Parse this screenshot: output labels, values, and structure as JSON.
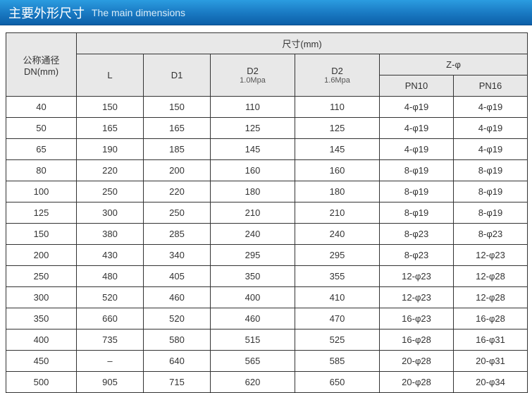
{
  "header": {
    "title_cn": "主要外形尺寸",
    "title_en": "The main dimensions"
  },
  "table": {
    "header": {
      "dn_line1": "公称通径",
      "dn_line2": "DN(mm)",
      "size_label": "尺寸(mm)",
      "L": "L",
      "D1": "D1",
      "D2a_main": "D2",
      "D2a_sub": "1.0Mpa",
      "D2b_main": "D2",
      "D2b_sub": "1.6Mpa",
      "Z_label": "Z-φ",
      "PN10": "PN10",
      "PN16": "PN16"
    },
    "rows": [
      {
        "dn": "40",
        "L": "150",
        "D1": "150",
        "D2a": "110",
        "D2b": "110",
        "Z1": "4-φ19",
        "Z2": "4-φ19"
      },
      {
        "dn": "50",
        "L": "165",
        "D1": "165",
        "D2a": "125",
        "D2b": "125",
        "Z1": "4-φ19",
        "Z2": "4-φ19"
      },
      {
        "dn": "65",
        "L": "190",
        "D1": "185",
        "D2a": "145",
        "D2b": "145",
        "Z1": "4-φ19",
        "Z2": "4-φ19"
      },
      {
        "dn": "80",
        "L": "220",
        "D1": "200",
        "D2a": "160",
        "D2b": "160",
        "Z1": "8-φ19",
        "Z2": "8-φ19"
      },
      {
        "dn": "100",
        "L": "250",
        "D1": "220",
        "D2a": "180",
        "D2b": "180",
        "Z1": "8-φ19",
        "Z2": "8-φ19"
      },
      {
        "dn": "125",
        "L": "300",
        "D1": "250",
        "D2a": "210",
        "D2b": "210",
        "Z1": "8-φ19",
        "Z2": "8-φ19"
      },
      {
        "dn": "150",
        "L": "380",
        "D1": "285",
        "D2a": "240",
        "D2b": "240",
        "Z1": "8-φ23",
        "Z2": "8-φ23"
      },
      {
        "dn": "200",
        "L": "430",
        "D1": "340",
        "D2a": "295",
        "D2b": "295",
        "Z1": "8-φ23",
        "Z2": "12-φ23"
      },
      {
        "dn": "250",
        "L": "480",
        "D1": "405",
        "D2a": "350",
        "D2b": "355",
        "Z1": "12-φ23",
        "Z2": "12-φ28"
      },
      {
        "dn": "300",
        "L": "520",
        "D1": "460",
        "D2a": "400",
        "D2b": "410",
        "Z1": "12-φ23",
        "Z2": "12-φ28"
      },
      {
        "dn": "350",
        "L": "660",
        "D1": "520",
        "D2a": "460",
        "D2b": "470",
        "Z1": "16-φ23",
        "Z2": "16-φ28"
      },
      {
        "dn": "400",
        "L": "735",
        "D1": "580",
        "D2a": "515",
        "D2b": "525",
        "Z1": "16-φ28",
        "Z2": "16-φ31"
      },
      {
        "dn": "450",
        "L": "–",
        "D1": "640",
        "D2a": "565",
        "D2b": "585",
        "Z1": "20-φ28",
        "Z2": "20-φ31"
      },
      {
        "dn": "500",
        "L": "905",
        "D1": "715",
        "D2a": "620",
        "D2b": "650",
        "Z1": "20-φ28",
        "Z2": "20-φ34"
      }
    ]
  },
  "colors": {
    "header_gradient_top": "#2b9ce0",
    "header_gradient_mid": "#1a7bc4",
    "header_gradient_bot": "#0c5fa8",
    "thead_bg": "#e8e8e8",
    "border": "#333333",
    "text": "#333333"
  }
}
